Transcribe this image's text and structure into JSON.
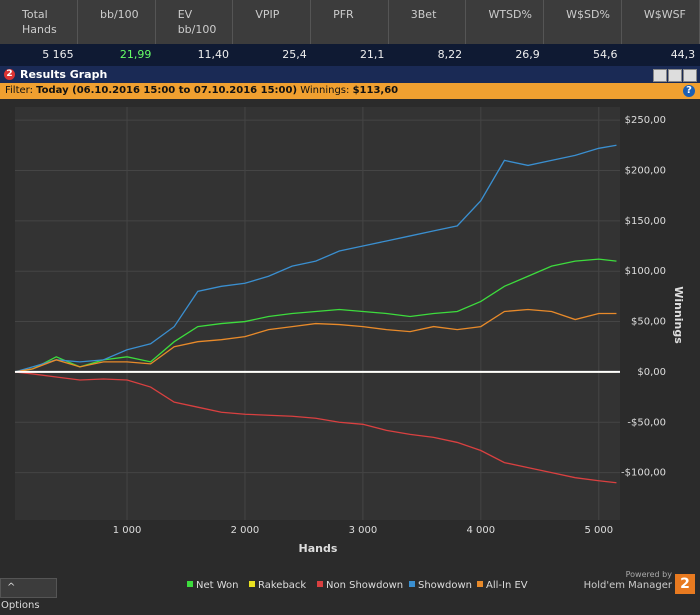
{
  "stats": {
    "headers": [
      "Total Hands",
      "bb/100",
      "EV bb/100",
      "VPIP",
      "PFR",
      "3Bet",
      "WTSD%",
      "W$SD%",
      "W$WSF"
    ],
    "values": [
      "5 165",
      "21,99",
      "11,40",
      "25,4",
      "21,1",
      "8,22",
      "26,9",
      "54,6",
      "44,3"
    ]
  },
  "window": {
    "icon_text": "2",
    "title": "Results Graph",
    "filter_label": "Filter:",
    "filter": "Today (06.10.2016 15:00 to 07.10.2016 15:00)",
    "winnings_label": "Winnings:",
    "winnings": "$113,60",
    "help": "?"
  },
  "footer": {
    "options": "Options",
    "powered_by": "Powered by",
    "brand": "Hold'em Manager",
    "logo_text": "2"
  },
  "chart_data": {
    "type": "line",
    "xlabel": "Hands",
    "ylabel": "Winnings",
    "x": [
      50,
      200,
      400,
      600,
      800,
      1000,
      1200,
      1400,
      1600,
      1800,
      2000,
      2200,
      2400,
      2600,
      2800,
      3000,
      3200,
      3400,
      3600,
      3800,
      4000,
      4200,
      4400,
      4600,
      4800,
      5000,
      5150
    ],
    "xlim": [
      50,
      5180
    ],
    "xticks": [
      {
        "value": 1000,
        "label": "1 000"
      },
      {
        "value": 2000,
        "label": "2 000"
      },
      {
        "value": 3000,
        "label": "3 000"
      },
      {
        "value": 4000,
        "label": "4 000"
      },
      {
        "value": 5000,
        "label": "5 000"
      }
    ],
    "ylim": [
      -147,
      263
    ],
    "yticks": [
      {
        "value": -100,
        "label": "-$100,00"
      },
      {
        "value": -50,
        "label": "-$50,00"
      },
      {
        "value": 0,
        "label": "$0,00"
      },
      {
        "value": 50,
        "label": "$50,00"
      },
      {
        "value": 100,
        "label": "$100,00"
      },
      {
        "value": 150,
        "label": "$150,00"
      },
      {
        "value": 200,
        "label": "$200,00"
      },
      {
        "value": 250,
        "label": "$250,00"
      }
    ],
    "grid": true,
    "series": [
      {
        "name": "Net Won",
        "color": "#3ddc3d",
        "values": [
          0,
          3,
          15,
          5,
          12,
          15,
          10,
          30,
          45,
          48,
          50,
          55,
          58,
          60,
          62,
          60,
          58,
          55,
          58,
          60,
          70,
          85,
          95,
          105,
          110,
          112,
          110
        ]
      },
      {
        "name": "Rakeback",
        "color": "#e8e020",
        "values": [
          0,
          0,
          0,
          0,
          0,
          0,
          0,
          0,
          0,
          0,
          0,
          0,
          0,
          0,
          0,
          0,
          0,
          0,
          0,
          0,
          0,
          0,
          0,
          0,
          0,
          0,
          0
        ]
      },
      {
        "name": "Non Showdown",
        "color": "#d94040",
        "values": [
          0,
          -2,
          -5,
          -8,
          -7,
          -8,
          -15,
          -30,
          -35,
          -40,
          -42,
          -43,
          -44,
          -46,
          -50,
          -52,
          -58,
          -62,
          -65,
          -70,
          -78,
          -90,
          -95,
          -100,
          -105,
          -108,
          -110
        ]
      },
      {
        "name": "Showdown",
        "color": "#3a8fd0",
        "values": [
          0,
          5,
          12,
          10,
          12,
          22,
          28,
          45,
          80,
          85,
          88,
          95,
          105,
          110,
          120,
          125,
          130,
          135,
          140,
          145,
          170,
          210,
          205,
          210,
          215,
          222,
          225
        ]
      },
      {
        "name": "All-In EV",
        "color": "#e88a2a",
        "values": [
          0,
          3,
          12,
          5,
          10,
          10,
          8,
          25,
          30,
          32,
          35,
          42,
          45,
          48,
          47,
          45,
          42,
          40,
          45,
          42,
          45,
          60,
          62,
          60,
          52,
          58,
          58
        ]
      }
    ]
  }
}
